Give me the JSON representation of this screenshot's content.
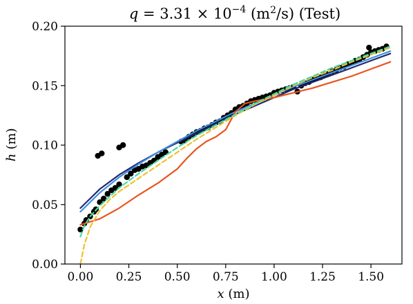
{
  "chart_data": {
    "type": "scatter",
    "title": "q = 3.31 × 10⁻⁴ (m²/s) (Test)",
    "title_parts": {
      "var": "q",
      "eq": " = 3.31 × 10",
      "exp": "−4",
      "unit_open": " (m",
      "unit_exp": "2",
      "unit_close": "/s) (Test)"
    },
    "xlabel": "x (m)",
    "xlabel_parts": {
      "var": "x",
      "unit": " (m)"
    },
    "ylabel": "h (m)",
    "ylabel_parts": {
      "var": "h",
      "unit": " (m)"
    },
    "xlim": [
      -0.08,
      1.66
    ],
    "ylim": [
      0.0,
      0.2
    ],
    "xticks": [
      0.0,
      0.25,
      0.5,
      0.75,
      1.0,
      1.25,
      1.5
    ],
    "xtick_labels": [
      "0.00",
      "0.25",
      "0.50",
      "0.75",
      "1.00",
      "1.25",
      "1.50"
    ],
    "yticks": [
      0.0,
      0.05,
      0.1,
      0.15,
      0.2
    ],
    "ytick_labels": [
      "0.00",
      "0.05",
      "0.10",
      "0.15",
      "0.20"
    ],
    "grid": false,
    "legend": "none",
    "series": [
      {
        "kind": "line",
        "color": "#1f2a6e",
        "style": "solid",
        "x": [
          0.0,
          0.1,
          0.2,
          0.3,
          0.4,
          0.5,
          0.6,
          0.7,
          0.8,
          0.9,
          1.0,
          1.1,
          1.2,
          1.3,
          1.4,
          1.5,
          1.6
        ],
        "y": [
          0.047,
          0.063,
          0.075,
          0.085,
          0.094,
          0.102,
          0.11,
          0.118,
          0.126,
          0.133,
          0.14,
          0.147,
          0.153,
          0.159,
          0.165,
          0.171,
          0.177
        ]
      },
      {
        "kind": "line",
        "color": "#3f8fe0",
        "style": "solid",
        "x": [
          0.0,
          0.1,
          0.2,
          0.3,
          0.4,
          0.5,
          0.6,
          0.7,
          0.8,
          0.9,
          1.0,
          1.1,
          1.2,
          1.3,
          1.4,
          1.5,
          1.6
        ],
        "y": [
          0.044,
          0.06,
          0.073,
          0.084,
          0.094,
          0.103,
          0.112,
          0.12,
          0.128,
          0.135,
          0.142,
          0.149,
          0.155,
          0.161,
          0.167,
          0.173,
          0.179
        ]
      },
      {
        "kind": "line",
        "color": "#e8531c",
        "style": "solid",
        "x": [
          0.0,
          0.1,
          0.2,
          0.3,
          0.4,
          0.5,
          0.55,
          0.6,
          0.65,
          0.7,
          0.75,
          0.8,
          0.85,
          0.9,
          1.0,
          1.1,
          1.2,
          1.3,
          1.4,
          1.5,
          1.6
        ],
        "y": [
          0.033,
          0.038,
          0.047,
          0.058,
          0.068,
          0.08,
          0.089,
          0.097,
          0.103,
          0.107,
          0.113,
          0.128,
          0.135,
          0.137,
          0.14,
          0.144,
          0.148,
          0.153,
          0.158,
          0.164,
          0.17
        ]
      },
      {
        "kind": "line",
        "color": "#f0c030",
        "style": "dashed",
        "x": [
          0.0,
          0.02,
          0.05,
          0.1,
          0.15,
          0.2,
          0.3,
          0.4,
          0.5,
          0.6,
          0.7,
          0.8,
          0.9,
          1.0,
          1.1,
          1.2,
          1.3,
          1.4,
          1.5,
          1.6
        ],
        "y": [
          0.0,
          0.016,
          0.031,
          0.045,
          0.054,
          0.061,
          0.072,
          0.083,
          0.094,
          0.105,
          0.115,
          0.125,
          0.134,
          0.142,
          0.15,
          0.157,
          0.163,
          0.17,
          0.176,
          0.182
        ]
      },
      {
        "kind": "line",
        "color": "#4ad8a0",
        "style": "dashed",
        "x": [
          0.0,
          0.02,
          0.05,
          0.1,
          0.2,
          0.3,
          0.4,
          0.5,
          0.6,
          0.7,
          0.8,
          0.9,
          1.0,
          1.1,
          1.2,
          1.3,
          1.4,
          1.5,
          1.6
        ],
        "y": [
          0.023,
          0.032,
          0.04,
          0.049,
          0.064,
          0.076,
          0.087,
          0.098,
          0.108,
          0.117,
          0.126,
          0.135,
          0.143,
          0.151,
          0.158,
          0.165,
          0.171,
          0.177,
          0.183
        ]
      },
      {
        "kind": "scatter",
        "color": "#000000",
        "points": [
          [
            0.0,
            0.029
          ],
          [
            0.02,
            0.034
          ],
          [
            0.03,
            0.037
          ],
          [
            0.05,
            0.04
          ],
          [
            0.07,
            0.044
          ],
          [
            0.08,
            0.046
          ],
          [
            0.09,
            0.091
          ],
          [
            0.11,
            0.093
          ],
          [
            0.1,
            0.052
          ],
          [
            0.12,
            0.055
          ],
          [
            0.14,
            0.059
          ],
          [
            0.16,
            0.062
          ],
          [
            0.18,
            0.064
          ],
          [
            0.2,
            0.067
          ],
          [
            0.22,
            0.1
          ],
          [
            0.2,
            0.098
          ],
          [
            0.24,
            0.073
          ],
          [
            0.26,
            0.076
          ],
          [
            0.28,
            0.079
          ],
          [
            0.3,
            0.08
          ],
          [
            0.32,
            0.082
          ],
          [
            0.34,
            0.083
          ],
          [
            0.36,
            0.085
          ],
          [
            0.38,
            0.087
          ],
          [
            0.4,
            0.09
          ],
          [
            0.42,
            0.092
          ],
          [
            0.44,
            0.094
          ],
          [
            0.52,
            0.103
          ],
          [
            0.54,
            0.104
          ],
          [
            0.56,
            0.107
          ],
          [
            0.58,
            0.109
          ],
          [
            0.6,
            0.111
          ],
          [
            0.62,
            0.112
          ],
          [
            0.64,
            0.114
          ],
          [
            0.66,
            0.115
          ],
          [
            0.68,
            0.117
          ],
          [
            0.7,
            0.119
          ],
          [
            0.72,
            0.12
          ],
          [
            0.74,
            0.123
          ],
          [
            0.76,
            0.125
          ],
          [
            0.78,
            0.127
          ],
          [
            0.8,
            0.13
          ],
          [
            0.82,
            0.132
          ],
          [
            0.84,
            0.133
          ],
          [
            0.86,
            0.135
          ],
          [
            0.88,
            0.137
          ],
          [
            0.9,
            0.138
          ],
          [
            0.92,
            0.139
          ],
          [
            0.94,
            0.14
          ],
          [
            0.96,
            0.141
          ],
          [
            0.98,
            0.142
          ],
          [
            1.0,
            0.144
          ],
          [
            1.02,
            0.145
          ],
          [
            1.04,
            0.146
          ],
          [
            1.06,
            0.147
          ],
          [
            1.08,
            0.148
          ],
          [
            1.1,
            0.149
          ],
          [
            1.12,
            0.145
          ],
          [
            1.14,
            0.15
          ],
          [
            1.16,
            0.152
          ],
          [
            1.18,
            0.153
          ],
          [
            1.2,
            0.155
          ],
          [
            1.22,
            0.156
          ],
          [
            1.24,
            0.157
          ],
          [
            1.26,
            0.159
          ],
          [
            1.28,
            0.16
          ],
          [
            1.3,
            0.162
          ],
          [
            1.32,
            0.163
          ],
          [
            1.34,
            0.165
          ],
          [
            1.36,
            0.166
          ],
          [
            1.38,
            0.168
          ],
          [
            1.4,
            0.169
          ],
          [
            1.42,
            0.171
          ],
          [
            1.44,
            0.172
          ],
          [
            1.46,
            0.174
          ],
          [
            1.48,
            0.176
          ],
          [
            1.49,
            0.182
          ],
          [
            1.5,
            0.178
          ],
          [
            1.52,
            0.179
          ],
          [
            1.54,
            0.18
          ],
          [
            1.56,
            0.181
          ],
          [
            1.58,
            0.183
          ]
        ]
      }
    ]
  }
}
